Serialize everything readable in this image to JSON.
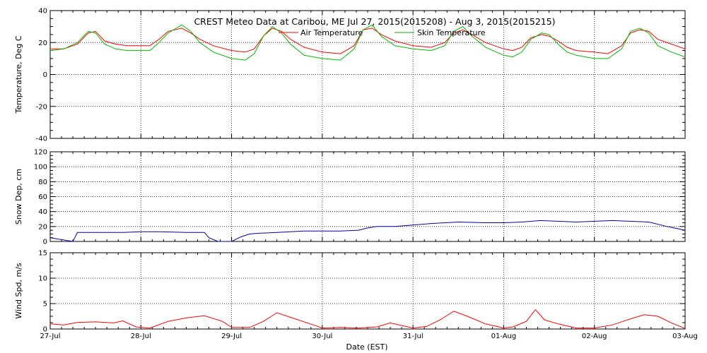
{
  "chart_data": {
    "title": "CREST Meteo Data at Caribou, ME   Jul 27, 2015(2015208) - Aug  3, 2015(2015215)",
    "type": "line",
    "xlabel": "Date (EST)",
    "x_ticks": [
      "27-Jul",
      "28-Jul",
      "29-Jul",
      "30-Jul",
      "31-Jul",
      "01-Aug",
      "02-Aug",
      "03-Aug"
    ],
    "x_range_days": [
      0,
      7
    ],
    "grid": "dotted",
    "panels": [
      {
        "id": "temperature",
        "ylabel": "Temperature, Deg C",
        "ylim": [
          -40,
          40
        ],
        "y_ticks": [
          -40,
          -20,
          0,
          20,
          40
        ],
        "legend": "top-center",
        "series": [
          {
            "name": "Air Temperature",
            "color": "#ff0000",
            "x": [
              0,
              0.15,
              0.3,
              0.42,
              0.5,
              0.6,
              0.72,
              0.85,
              1.0,
              1.1,
              1.2,
              1.3,
              1.45,
              1.55,
              1.65,
              1.8,
              2.0,
              2.15,
              2.25,
              2.35,
              2.45,
              2.55,
              2.65,
              2.8,
              3.0,
              3.2,
              3.35,
              3.45,
              3.55,
              3.65,
              3.8,
              4.0,
              4.2,
              4.35,
              4.45,
              4.55,
              4.65,
              4.8,
              5.0,
              5.1,
              5.2,
              5.3,
              5.42,
              5.5,
              5.6,
              5.7,
              5.8,
              6.0,
              6.15,
              6.3,
              6.4,
              6.5,
              6.6,
              6.7,
              6.85,
              7.0
            ],
            "values": [
              16,
              16,
              19,
              26,
              27,
              21,
              19,
              18,
              18,
              18,
              22,
              27,
              29,
              26,
              22,
              18,
              15,
              14,
              16,
              24,
              29,
              27,
              22,
              17,
              14,
              13,
              18,
              28,
              29,
              25,
              21,
              18,
              17,
              20,
              26,
              28,
              25,
              20,
              16,
              15,
              17,
              23,
              25,
              24,
              21,
              17,
              15,
              14,
              13,
              18,
              26,
              28,
              27,
              22,
              19,
              16
            ]
          },
          {
            "name": "Skin Temperature",
            "color": "#00bb00",
            "x": [
              0,
              0.15,
              0.3,
              0.42,
              0.5,
              0.6,
              0.72,
              0.85,
              1.0,
              1.1,
              1.2,
              1.3,
              1.45,
              1.55,
              1.65,
              1.8,
              2.0,
              2.15,
              2.25,
              2.35,
              2.45,
              2.55,
              2.65,
              2.8,
              3.0,
              3.2,
              3.35,
              3.45,
              3.55,
              3.65,
              3.8,
              4.0,
              4.2,
              4.35,
              4.45,
              4.55,
              4.65,
              4.8,
              5.0,
              5.1,
              5.2,
              5.3,
              5.42,
              5.5,
              5.6,
              5.7,
              5.8,
              6.0,
              6.15,
              6.3,
              6.4,
              6.5,
              6.6,
              6.7,
              6.85,
              7.0
            ],
            "values": [
              15,
              16,
              20,
              27,
              26,
              19,
              16,
              15,
              15,
              15,
              20,
              26,
              31,
              27,
              20,
              14,
              10,
              9,
              13,
              24,
              30,
              26,
              19,
              12,
              10,
              9,
              16,
              28,
              31,
              24,
              18,
              16,
              15,
              18,
              27,
              30,
              24,
              17,
              12,
              11,
              14,
              22,
              26,
              25,
              19,
              14,
              12,
              10,
              10,
              16,
              27,
              29,
              26,
              18,
              14,
              11
            ]
          }
        ]
      },
      {
        "id": "snow",
        "ylabel": "Snow Dep, cm",
        "ylim": [
          0,
          120
        ],
        "y_ticks": [
          0,
          20,
          40,
          60,
          80,
          100,
          120
        ],
        "series": [
          {
            "color": "#0000aa",
            "x": [
              0,
              0.25,
              0.3,
              0.5,
              0.8,
              1.0,
              1.2,
              1.5,
              1.7,
              1.75,
              1.85,
              2.0,
              2.1,
              2.2,
              2.3,
              2.5,
              2.8,
              3.0,
              3.2,
              3.4,
              3.5,
              3.6,
              3.8,
              4.0,
              4.2,
              4.5,
              4.8,
              5.0,
              5.2,
              5.4,
              5.6,
              5.8,
              6.0,
              6.2,
              6.4,
              6.6,
              6.8,
              7.0
            ],
            "values": [
              5,
              0,
              12,
              12,
              12,
              13,
              13,
              12,
              12,
              5,
              0,
              0,
              6,
              10,
              11,
              12,
              14,
              14,
              14,
              15,
              18,
              20,
              20,
              22,
              24,
              26,
              25,
              25,
              26,
              28,
              27,
              26,
              27,
              28,
              27,
              26,
              20,
              15
            ]
          }
        ]
      },
      {
        "id": "wind",
        "ylabel": "Wind Spd, m/s",
        "ylim": [
          0,
          15
        ],
        "y_ticks": [
          0,
          5,
          10,
          15
        ],
        "series": [
          {
            "color": "#ff0000",
            "x": [
              0,
              0.15,
              0.3,
              0.5,
              0.7,
              0.8,
              0.95,
              1.1,
              1.3,
              1.5,
              1.7,
              1.9,
              2.0,
              2.2,
              2.35,
              2.5,
              2.7,
              2.9,
              3.0,
              3.2,
              3.4,
              3.6,
              3.75,
              3.9,
              4.0,
              4.15,
              4.3,
              4.45,
              4.6,
              4.8,
              5.0,
              5.1,
              5.25,
              5.35,
              5.45,
              5.6,
              5.8,
              6.0,
              6.2,
              6.4,
              6.55,
              6.7,
              6.85,
              7.0
            ],
            "values": [
              1.0,
              0.8,
              1.3,
              1.4,
              1.2,
              1.6,
              0.4,
              0.2,
              1.5,
              2.2,
              2.6,
              1.5,
              0.3,
              0.3,
              1.5,
              3.2,
              2.0,
              0.8,
              0.2,
              0.3,
              0.2,
              0.4,
              1.2,
              0.6,
              0.2,
              0.5,
              1.8,
              3.5,
              2.5,
              1.0,
              0.2,
              0.4,
              1.5,
              3.8,
              1.8,
              1.0,
              0.2,
              0.2,
              0.8,
              2.0,
              2.8,
              2.5,
              1.2,
              0.1
            ]
          }
        ]
      }
    ]
  }
}
